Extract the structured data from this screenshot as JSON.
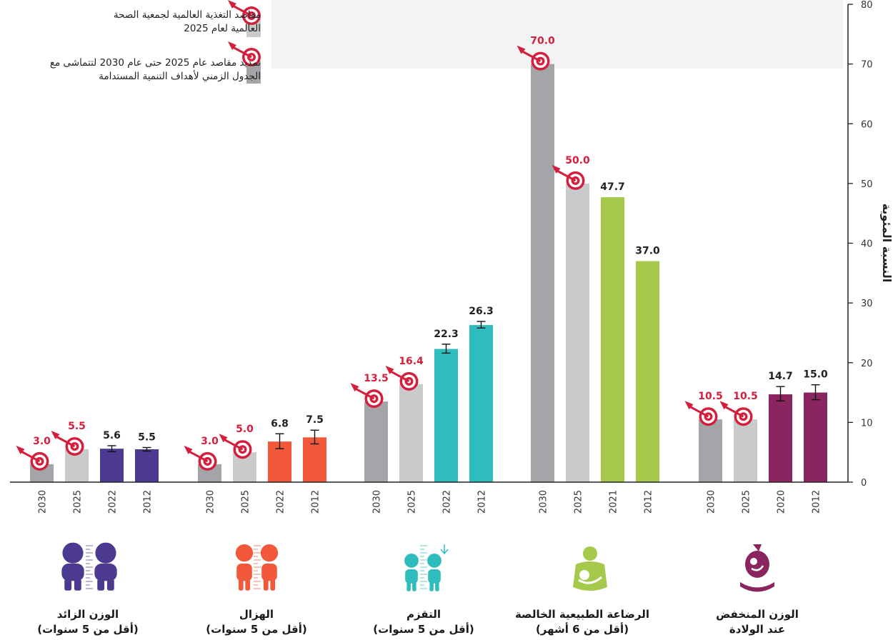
{
  "legend": {
    "who_2025": "مقاصد التغذية العالمية لجمعية الصحة العالمية لعام 2025",
    "sdg_2030": "تمديد مقاصد عام 2025 حتى عام 2030 لتتماشى مع الجدول الزمني لأهداف التنمية المستدامة"
  },
  "colors": {
    "target_2030": "#a3a5a8",
    "target_2025": "#c9cacc",
    "target_icon": "#d41f3c",
    "target_label": "#d41f3c",
    "axis": "#222222",
    "backdrop": "#f4f4f4"
  },
  "chart_data": {
    "type": "bar",
    "ylabel": "النسبة المئوية",
    "ylim": [
      0,
      80
    ],
    "yticks": [
      0,
      10,
      20,
      30,
      40,
      50,
      60,
      70,
      80
    ],
    "groups": [
      {
        "name": "الوزن الزائد",
        "line1": "الوزن الزائد",
        "line2": "(أقل من 5 سنوات)",
        "color": "#4b3a8f",
        "icon": "overweight-children-icon",
        "bars": [
          {
            "year": "2030",
            "value": 3.0,
            "label": "3.0",
            "kind": "target2030"
          },
          {
            "year": "2025",
            "value": 5.5,
            "label": "5.5",
            "kind": "target2025"
          },
          {
            "year": "2022",
            "value": 5.6,
            "label": "5.6",
            "kind": "actual",
            "err": [
              5.1,
              6.1
            ]
          },
          {
            "year": "2012",
            "value": 5.5,
            "label": "5.5",
            "kind": "actual",
            "err": [
              5.2,
              5.8
            ]
          }
        ]
      },
      {
        "name": "الهزال",
        "line1": "الهزال",
        "line2": "(أقل من 5 سنوات)",
        "color": "#f2583a",
        "icon": "wasting-children-icon",
        "bars": [
          {
            "year": "2030",
            "value": 3.0,
            "label": "3.0",
            "kind": "target2030"
          },
          {
            "year": "2025",
            "value": 5.0,
            "label": "5.0",
            "kind": "target2025"
          },
          {
            "year": "2022",
            "value": 6.8,
            "label": "6.8",
            "kind": "actual",
            "err": [
              5.6,
              8.1
            ]
          },
          {
            "year": "2012",
            "value": 7.5,
            "label": "7.5",
            "kind": "actual",
            "err": [
              6.4,
              8.7
            ]
          }
        ]
      },
      {
        "name": "التقزم",
        "line1": "التقزم",
        "line2": "(أقل من 5 سنوات)",
        "color": "#2fbcbc",
        "icon": "stunting-children-icon",
        "bars": [
          {
            "year": "2030",
            "value": 13.5,
            "label": "13.5",
            "kind": "target2030"
          },
          {
            "year": "2025",
            "value": 16.4,
            "label": "16.4",
            "kind": "target2025"
          },
          {
            "year": "2022",
            "value": 22.3,
            "label": "22.3",
            "kind": "actual",
            "err": [
              21.6,
              23.1
            ]
          },
          {
            "year": "2012",
            "value": 26.3,
            "label": "26.3",
            "kind": "actual",
            "err": [
              25.8,
              26.9
            ]
          }
        ]
      },
      {
        "name": "الرضاعة الطبيعية الخالصة",
        "line1": "الرضاعة الطبيعية الخالصة",
        "line2": "(أقل من 6 أشهر)",
        "color": "#a5c94a",
        "icon": "breastfeeding-icon",
        "bars": [
          {
            "year": "2030",
            "value": 70.0,
            "label": "70.0",
            "kind": "target2030"
          },
          {
            "year": "2025",
            "value": 50.0,
            "label": "50.0",
            "kind": "target2025"
          },
          {
            "year": "2021",
            "value": 47.7,
            "label": "47.7",
            "kind": "actual"
          },
          {
            "year": "2012",
            "value": 37.0,
            "label": "37.0",
            "kind": "actual"
          }
        ]
      },
      {
        "name": "الوزن المنخفض عند الولادة",
        "line1": "الوزن المنخفض",
        "line2": "عند الولادة",
        "color": "#8a2560",
        "icon": "low-birth-weight-icon",
        "bars": [
          {
            "year": "2030",
            "value": 10.5,
            "label": "10.5",
            "kind": "target2030"
          },
          {
            "year": "2025",
            "value": 10.5,
            "label": "10.5",
            "kind": "target2025"
          },
          {
            "year": "2020",
            "value": 14.7,
            "label": "14.7",
            "kind": "actual",
            "err": [
              13.6,
              16.0
            ]
          },
          {
            "year": "2012",
            "value": 15.0,
            "label": "15.0",
            "kind": "actual",
            "err": [
              13.8,
              16.3
            ]
          }
        ]
      }
    ]
  }
}
